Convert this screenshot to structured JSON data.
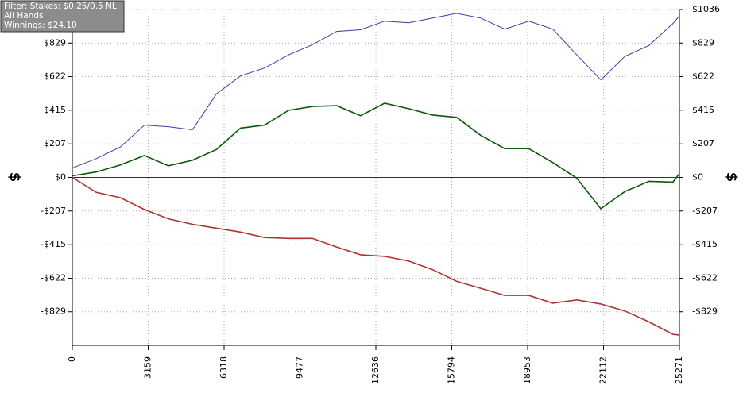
{
  "chart_data": {
    "type": "line",
    "info_box": [
      "Filter: Stakes: $0.25/0.5 NL",
      "All Hands",
      "Winnings: $24.10"
    ],
    "ylabel": "$",
    "x": [
      0,
      1000,
      2000,
      3000,
      4000,
      5000,
      6000,
      7000,
      8000,
      9000,
      10000,
      11000,
      12000,
      13000,
      14000,
      15000,
      16000,
      17000,
      18000,
      19000,
      20000,
      21000,
      22000,
      23000,
      24000,
      25000,
      25271
    ],
    "series": [
      {
        "color": "#3b3ba3",
        "values": [
          58,
          116,
          188,
          323,
          313,
          294,
          516,
          626,
          675,
          756,
          819,
          901,
          911,
          964,
          954,
          983,
          1012,
          983,
          915,
          964,
          915,
          756,
          602,
          747,
          814,
          949,
          997
        ]
      },
      {
        "color": "#0b5a0b",
        "values": [
          10,
          34,
          77,
          135,
          72,
          106,
          173,
          304,
          323,
          414,
          438,
          443,
          381,
          458,
          424,
          385,
          371,
          260,
          178,
          178,
          92,
          -5,
          -193,
          -87,
          -24,
          -29,
          24
        ]
      },
      {
        "color": "#b03232",
        "values": [
          0,
          -92,
          -125,
          -198,
          -255,
          -289,
          -313,
          -337,
          -371,
          -376,
          -376,
          -429,
          -477,
          -487,
          -516,
          -569,
          -641,
          -684,
          -728,
          -728,
          -776,
          -756,
          -781,
          -824,
          -891,
          -968,
          -973
        ]
      }
    ],
    "xlim": [
      0,
      25271
    ],
    "xticks": [
      0,
      3159,
      6318,
      9477,
      12636,
      15794,
      18953,
      22112,
      25271
    ],
    "ylim": [
      -1036,
      1036
    ],
    "yticks": [
      {
        "value": -829,
        "label": "-$829"
      },
      {
        "value": -622,
        "label": "-$622"
      },
      {
        "value": -415,
        "label": "-$415"
      },
      {
        "value": -207,
        "label": "-$207"
      },
      {
        "value": 0,
        "label": "$0"
      },
      {
        "value": 207,
        "label": "$207"
      },
      {
        "value": 415,
        "label": "$415"
      },
      {
        "value": 622,
        "label": "$622"
      },
      {
        "value": 829,
        "label": "$829"
      },
      {
        "value": 1036,
        "label": "$1036"
      }
    ],
    "grid": true
  }
}
